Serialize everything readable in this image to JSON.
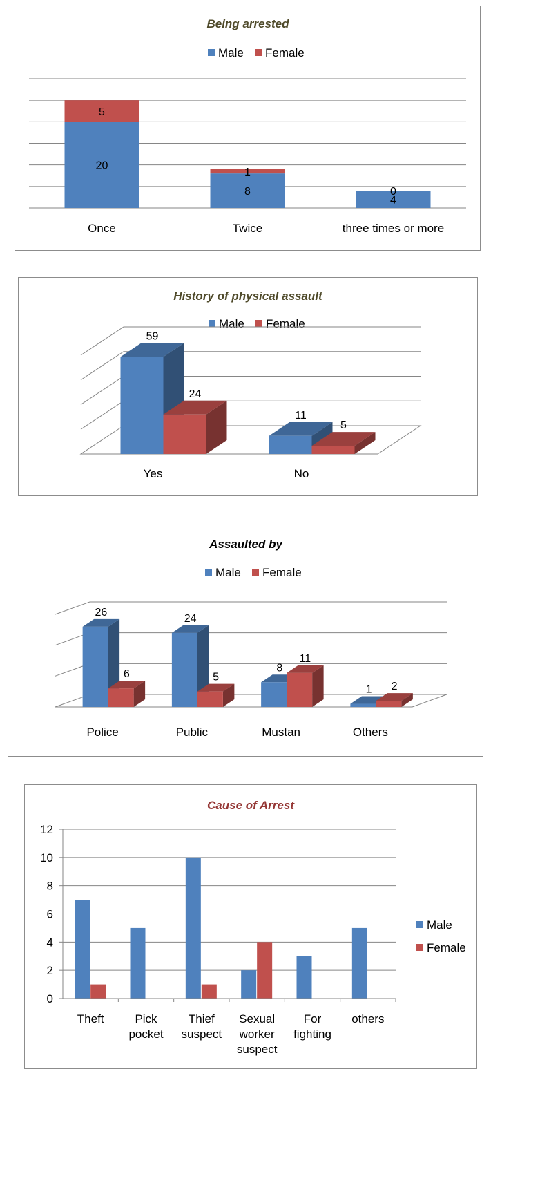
{
  "chart_data": [
    {
      "type": "bar",
      "stacked": true,
      "title": "Being arrested",
      "categories": [
        "Once",
        "Twice",
        "three times or more"
      ],
      "series": [
        {
          "name": "Male",
          "values": [
            20,
            8,
            4
          ]
        },
        {
          "name": "Female",
          "values": [
            5,
            1,
            0
          ]
        }
      ],
      "ylim": [
        0,
        30
      ],
      "grid": true,
      "legend_position": "top",
      "colors": {
        "Male": "#4f81bd",
        "Female": "#c0504d",
        "title": "#4f4a2a"
      }
    },
    {
      "type": "bar",
      "style": "3d-clustered",
      "title": "History of physical  assault",
      "categories": [
        "Yes",
        "No"
      ],
      "series": [
        {
          "name": "Male",
          "values": [
            59,
            11
          ]
        },
        {
          "name": "Female",
          "values": [
            24,
            5
          ]
        }
      ],
      "ylim": [
        0,
        60
      ],
      "grid": true,
      "legend_position": "top",
      "colors": {
        "Male": "#4f81bd",
        "Female": "#c0504d",
        "title": "#4f4a2a"
      }
    },
    {
      "type": "bar",
      "style": "3d-clustered",
      "title": "Assaulted by",
      "categories": [
        "Police",
        "Public",
        "Mustan",
        "Others"
      ],
      "series": [
        {
          "name": "Male",
          "values": [
            26,
            24,
            8,
            1
          ]
        },
        {
          "name": "Female",
          "values": [
            6,
            5,
            11,
            2
          ]
        }
      ],
      "ylim": [
        0,
        30
      ],
      "grid": true,
      "legend_position": "top",
      "colors": {
        "Male": "#4f81bd",
        "Female": "#c0504d",
        "title": "#000000"
      }
    },
    {
      "type": "bar",
      "title": "Cause of Arrest",
      "categories": [
        "Theft",
        "Pick pocket",
        "Thief suspect",
        "Sexual worker suspect",
        "For fighting",
        "others"
      ],
      "category_lines": [
        [
          "Theft"
        ],
        [
          "Pick",
          "pocket"
        ],
        [
          "Thief",
          "suspect"
        ],
        [
          "Sexual",
          "worker",
          "suspect"
        ],
        [
          "For",
          "fighting"
        ],
        [
          "others"
        ]
      ],
      "series": [
        {
          "name": "Male",
          "values": [
            7,
            5,
            10,
            2,
            3,
            5
          ]
        },
        {
          "name": "Female",
          "values": [
            1,
            0,
            1,
            4,
            0,
            0
          ]
        }
      ],
      "ylim": [
        0,
        12
      ],
      "yticks": [
        "0",
        "2",
        "4",
        "6",
        "8",
        "10",
        "12"
      ],
      "grid": true,
      "legend_position": "right",
      "colors": {
        "Male": "#4f81bd",
        "Female": "#c0504d",
        "title": "#953735"
      }
    }
  ]
}
